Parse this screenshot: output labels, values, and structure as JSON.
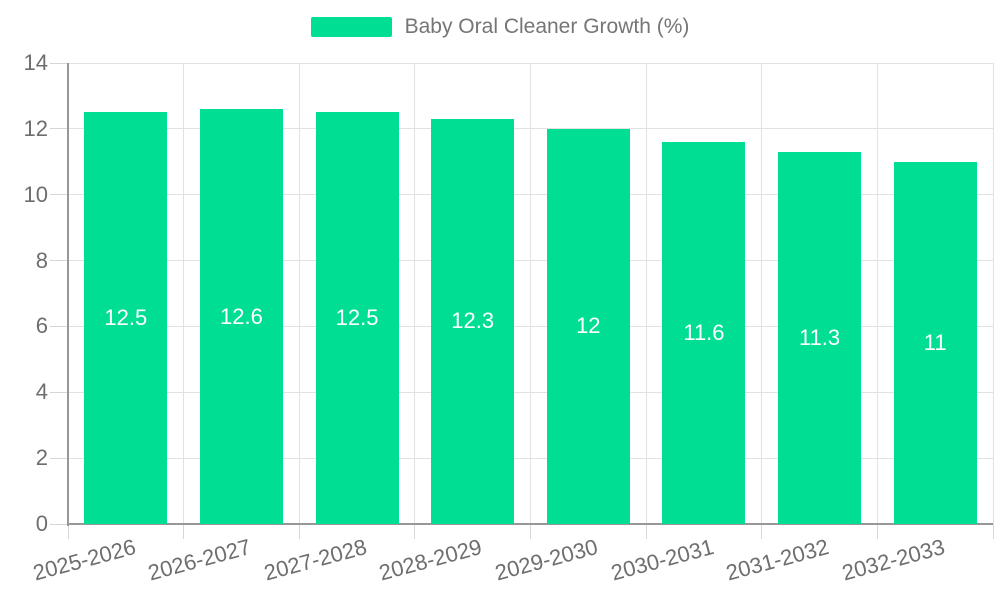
{
  "legend": {
    "label": "Baby Oral Cleaner Growth (%)"
  },
  "colors": {
    "bar": "#00DE93",
    "gridline": "#E2E2E2",
    "tick": "#D6D6D6",
    "axis_line": "#979797",
    "axis_text": "#6E6E6E",
    "legend_text": "#757575",
    "bar_label_text": "#FFFFFF",
    "background": "#FFFFFF"
  },
  "chart_data": {
    "type": "bar",
    "title": "",
    "xlabel": "",
    "ylabel": "",
    "categories": [
      "2025-2026",
      "2026-2027",
      "2027-2028",
      "2028-2029",
      "2029-2030",
      "2030-2031",
      "2031-2032",
      "2032-2033"
    ],
    "series": [
      {
        "name": "Baby Oral Cleaner Growth (%)",
        "values": [
          12.5,
          12.6,
          12.5,
          12.3,
          12,
          11.6,
          11.3,
          11
        ]
      }
    ],
    "value_labels": [
      "12.5",
      "12.6",
      "12.5",
      "12.3",
      "12",
      "11.6",
      "11.3",
      "11"
    ],
    "ylim": [
      0,
      14
    ],
    "yticks": [
      0,
      2,
      4,
      6,
      8,
      10,
      12,
      14
    ],
    "grid": true,
    "legend_position": "top",
    "x_label_rotation_deg": -15,
    "bar_labels_visible": true
  }
}
